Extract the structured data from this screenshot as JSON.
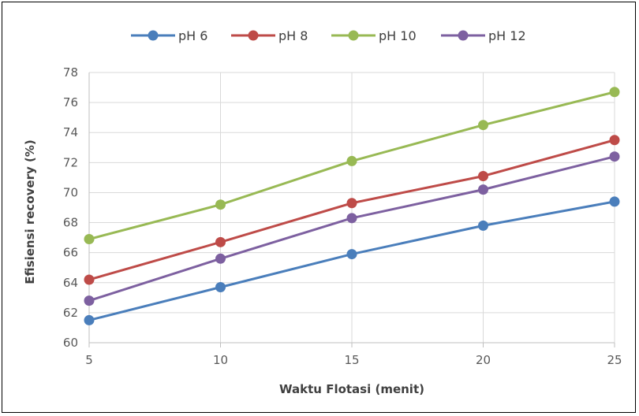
{
  "chart_data": {
    "type": "line",
    "x": [
      5,
      10,
      15,
      20,
      25
    ],
    "x_ticks": [
      "5",
      "10",
      "15",
      "20",
      "25"
    ],
    "y_ticks": [
      "60",
      "62",
      "64",
      "66",
      "68",
      "70",
      "72",
      "74",
      "76",
      "78"
    ],
    "xlabel": "Waktu Flotasi (menit)",
    "ylabel": "Efisiensi recovery (%)",
    "xlim": [
      5,
      25
    ],
    "ylim": [
      60,
      78
    ],
    "grid": true,
    "legend_position": "top",
    "series": [
      {
        "name": "pH 6",
        "color": "#4a7ebb",
        "values": [
          61.5,
          63.7,
          65.9,
          67.8,
          69.4
        ]
      },
      {
        "name": "pH 8",
        "color": "#be4b48",
        "values": [
          64.2,
          66.7,
          69.3,
          71.1,
          73.5
        ]
      },
      {
        "name": "pH 10",
        "color": "#98b954",
        "values": [
          66.9,
          69.2,
          72.1,
          74.5,
          76.7
        ]
      },
      {
        "name": "pH 12",
        "color": "#7d60a0",
        "values": [
          62.8,
          65.6,
          68.3,
          70.2,
          72.4
        ]
      }
    ]
  }
}
